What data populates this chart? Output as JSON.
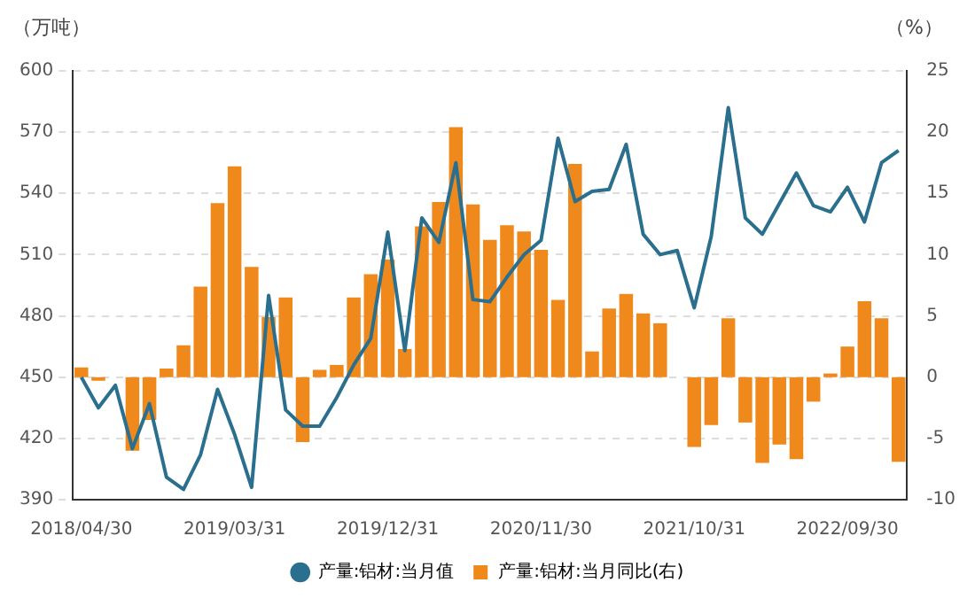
{
  "chart_data": {
    "type": "bar",
    "ylabel": "（万吨）",
    "y2label": "（%）",
    "categories": [
      "2018/04/30",
      null,
      null,
      null,
      null,
      null,
      null,
      null,
      null,
      "2019/03/31",
      null,
      null,
      null,
      null,
      null,
      null,
      null,
      null,
      "2019/12/31",
      null,
      null,
      null,
      null,
      null,
      null,
      null,
      null,
      "2020/11/30",
      null,
      null,
      null,
      null,
      null,
      null,
      null,
      null,
      "2021/10/31",
      null,
      null,
      null,
      null,
      null,
      null,
      null,
      null,
      "2022/09/30",
      null,
      null,
      null
    ],
    "series": [
      {
        "name": "产量:铝材:当月值",
        "type": "line",
        "color": "#2b6f8e",
        "values": [
          450,
          435,
          446,
          415,
          437,
          401,
          395,
          412,
          444,
          422,
          396,
          490,
          434,
          426,
          426,
          440,
          456,
          469,
          521,
          463,
          528,
          516,
          555,
          488,
          487,
          499,
          510,
          517,
          567,
          536,
          541,
          542,
          564,
          520,
          510,
          512,
          484,
          519,
          582,
          528,
          520,
          535,
          550,
          534,
          531,
          543,
          526,
          555,
          561
        ]
      },
      {
        "name": "产量:铝材:当月同比(右)",
        "axis": "y2",
        "color": "#f0891c",
        "values": [
          0.8,
          -0.3,
          null,
          -6.0,
          -3.5,
          0.7,
          2.6,
          7.4,
          14.2,
          17.2,
          9.0,
          4.9,
          6.5,
          -5.3,
          0.6,
          1.0,
          6.5,
          8.4,
          9.6,
          2.3,
          12.3,
          14.3,
          20.4,
          14.1,
          11.2,
          12.4,
          11.9,
          10.4,
          6.3,
          17.4,
          2.1,
          5.6,
          6.8,
          5.2,
          4.4,
          null,
          -5.7,
          -3.9,
          4.8,
          -3.7,
          -7.0,
          -5.5,
          -6.7,
          -2.0,
          0.3,
          2.5,
          6.2,
          4.8,
          -6.9
        ]
      }
    ],
    "ylim": [
      390,
      600
    ],
    "yticks": [
      390,
      420,
      450,
      480,
      510,
      540,
      570,
      600
    ],
    "y2lim": [
      -10,
      25
    ],
    "y2ticks": [
      -10,
      -5,
      0,
      5,
      10,
      15,
      20,
      25
    ],
    "grid": "y",
    "legend": "bottom",
    "marker": "none",
    "line_style": "solid"
  }
}
